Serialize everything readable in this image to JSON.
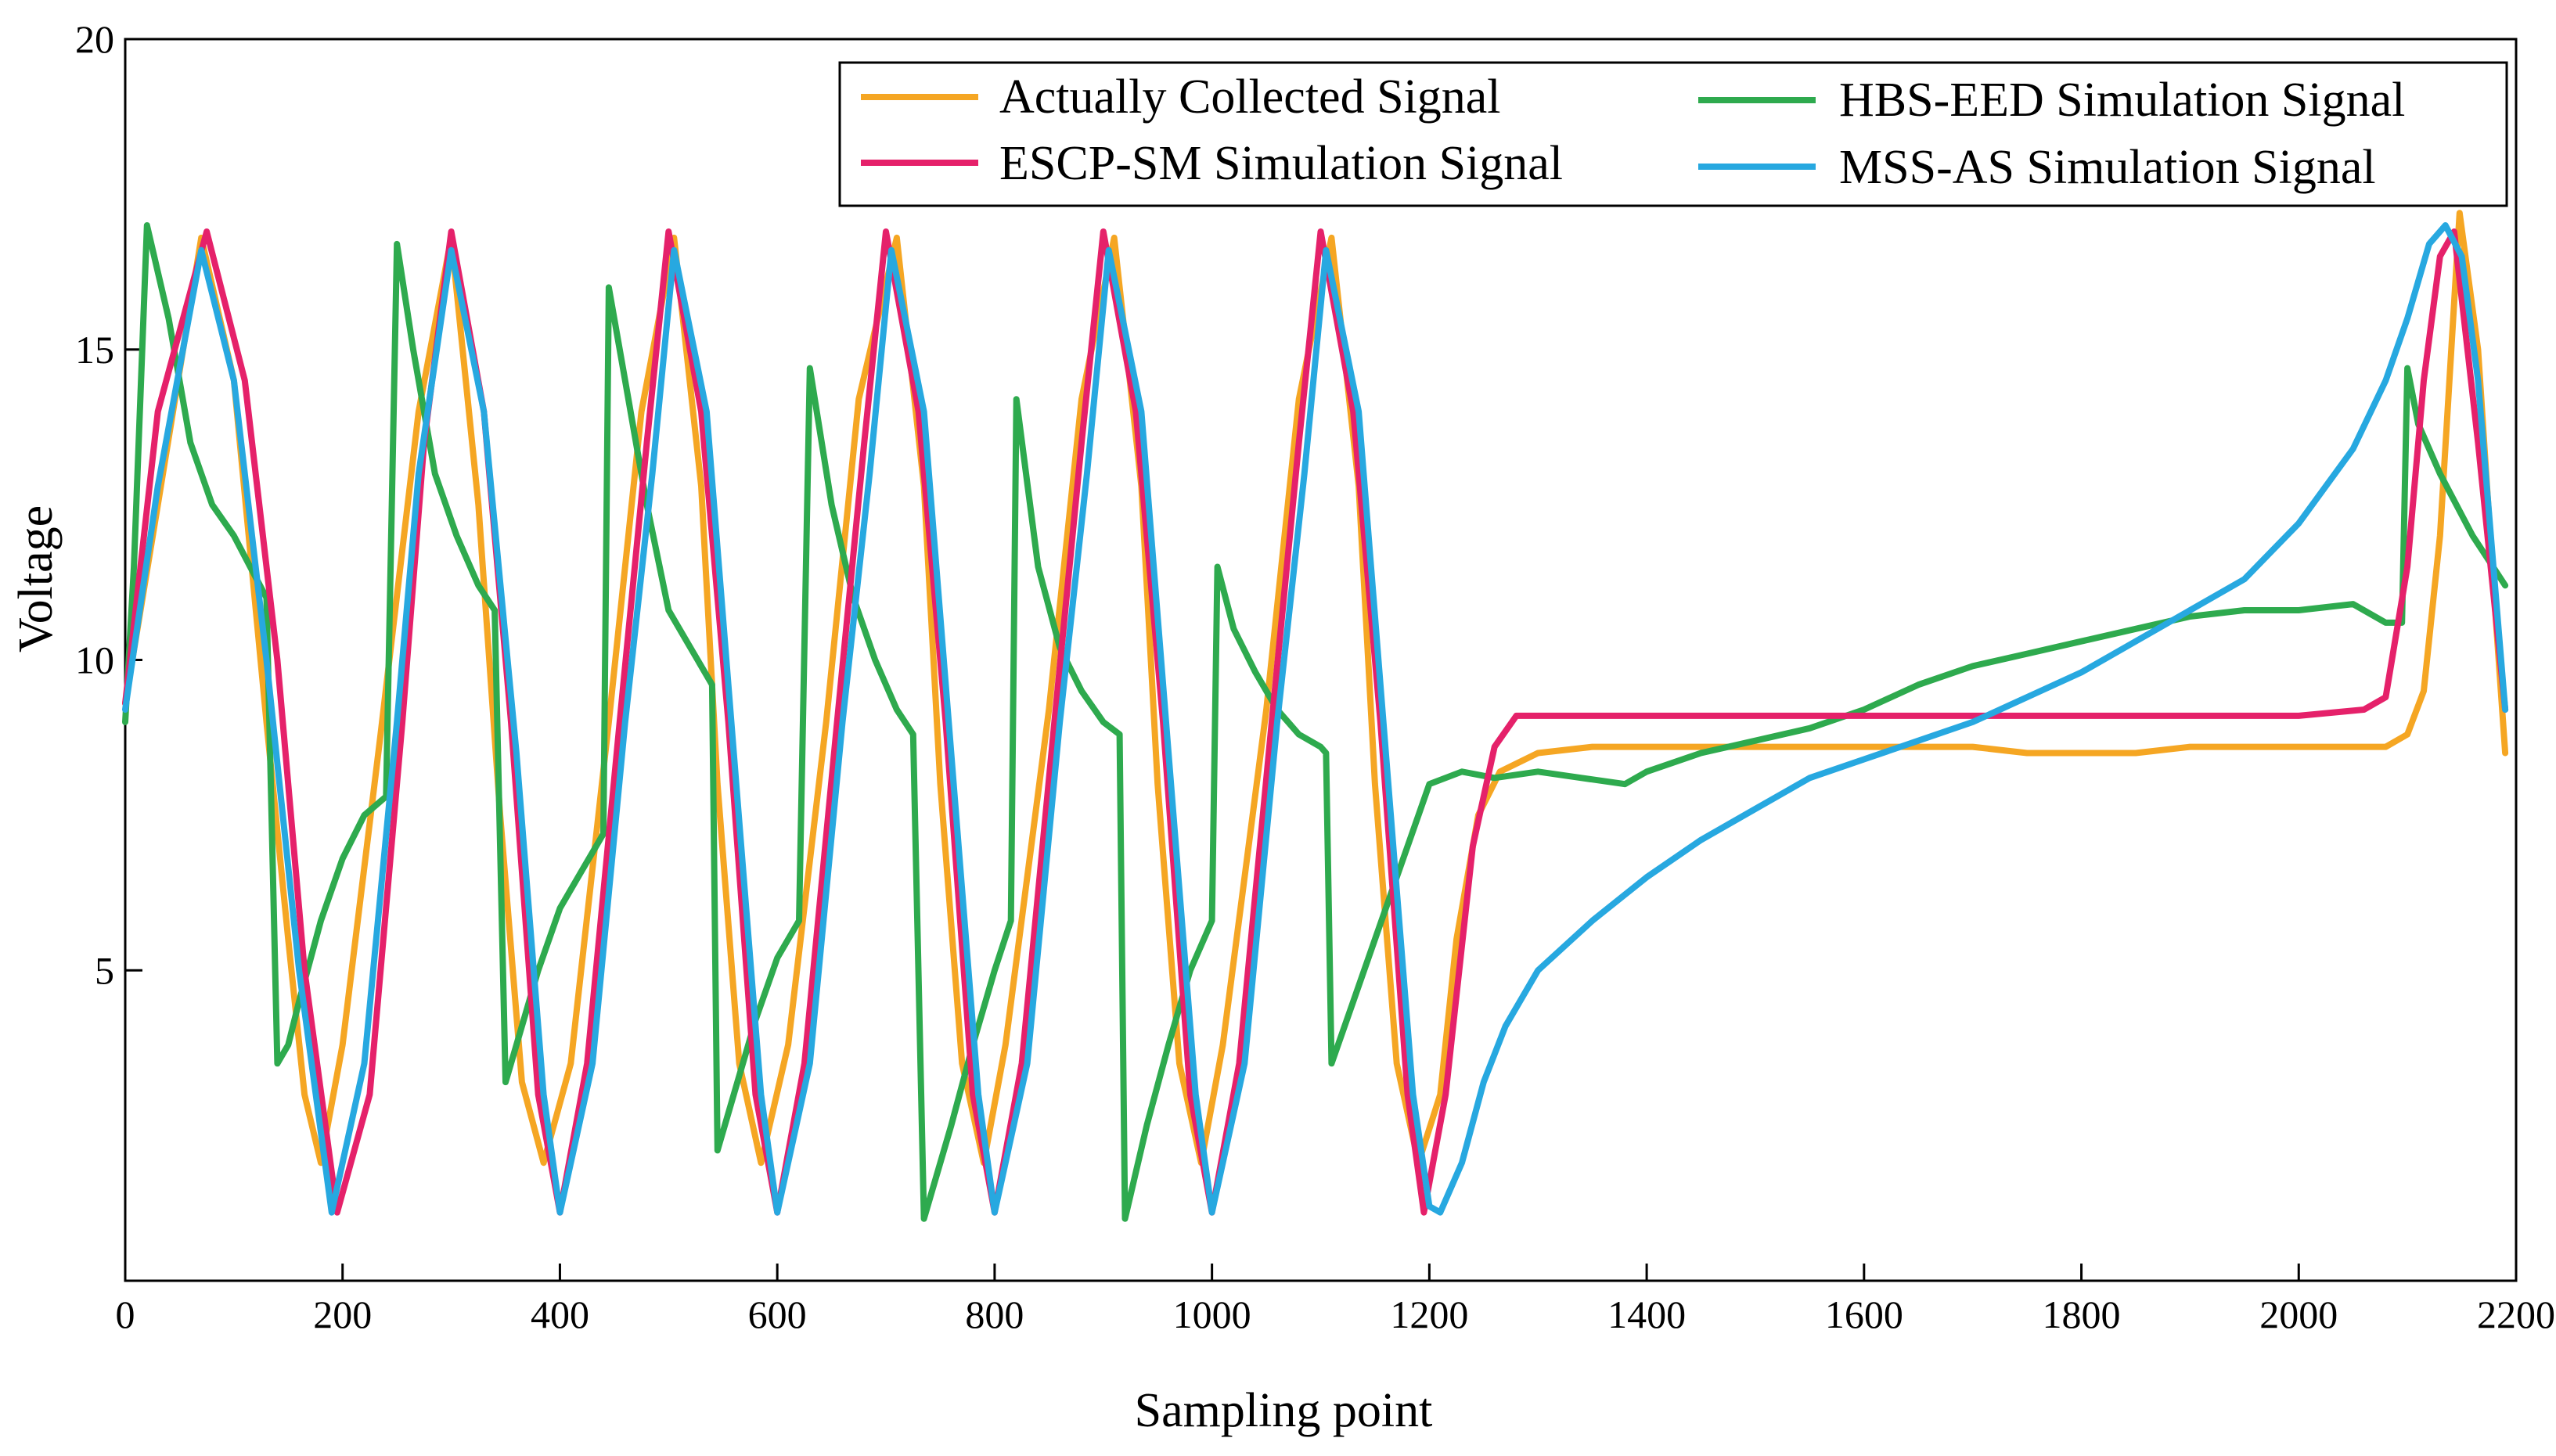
{
  "chart_data": {
    "type": "line",
    "title": "",
    "xlabel": "Sampling point",
    "ylabel": "Voltage",
    "xlim": [
      0,
      2200
    ],
    "ylim": [
      0,
      20
    ],
    "x_ticks": [
      0,
      200,
      400,
      600,
      800,
      1000,
      1200,
      1400,
      1600,
      1800,
      2000,
      2200
    ],
    "x_tick_labels": [
      "0",
      "200",
      "400",
      "600",
      "800",
      "1000",
      "1200",
      "1400",
      "1600",
      "1800",
      "2000",
      "2200"
    ],
    "y_ticks": [
      5,
      10,
      15,
      20
    ],
    "y_tick_labels": [
      "5",
      "10",
      "15",
      "20"
    ],
    "grid": false,
    "legend_position": "top-right",
    "series": [
      {
        "name": "Actually Collected Signal",
        "color": "#F5A623",
        "x": [
          0,
          30,
          70,
          100,
          130,
          150,
          165,
          180,
          200,
          235,
          270,
          300,
          325,
          345,
          365,
          385,
          410,
          445,
          475,
          505,
          530,
          545,
          565,
          585,
          610,
          645,
          675,
          710,
          735,
          750,
          770,
          790,
          810,
          850,
          880,
          910,
          935,
          950,
          970,
          990,
          1010,
          1050,
          1080,
          1110,
          1135,
          1150,
          1170,
          1190,
          1210,
          1225,
          1245,
          1265,
          1300,
          1350,
          1400,
          1450,
          1500,
          1550,
          1600,
          1650,
          1700,
          1750,
          1800,
          1850,
          1900,
          1950,
          2000,
          2050,
          2080,
          2100,
          2115,
          2130,
          2148,
          2165,
          2180,
          2190
        ],
        "values": [
          9.3,
          12.5,
          16.8,
          14.5,
          9.0,
          5.5,
          3.0,
          1.9,
          3.8,
          8.8,
          14.0,
          16.8,
          12.5,
          7.5,
          3.2,
          1.9,
          3.5,
          9.0,
          14.0,
          16.8,
          12.8,
          8.0,
          3.5,
          1.9,
          3.8,
          9.0,
          14.2,
          16.8,
          12.8,
          8.0,
          3.5,
          1.9,
          3.8,
          9.2,
          14.2,
          16.8,
          12.8,
          8.0,
          3.5,
          1.9,
          3.8,
          9.2,
          14.2,
          16.8,
          12.8,
          8.0,
          3.5,
          1.9,
          3.0,
          5.5,
          7.5,
          8.2,
          8.5,
          8.6,
          8.6,
          8.6,
          8.6,
          8.6,
          8.6,
          8.6,
          8.6,
          8.5,
          8.5,
          8.5,
          8.6,
          8.6,
          8.6,
          8.6,
          8.6,
          8.8,
          9.5,
          12.0,
          17.2,
          15.0,
          11.0,
          8.5
        ]
      },
      {
        "name": "HBS-EED Simulation Signal",
        "color": "#2EAA4E",
        "x": [
          0,
          8,
          20,
          40,
          60,
          80,
          100,
          115,
          130,
          140,
          150,
          160,
          180,
          200,
          220,
          240,
          250,
          265,
          285,
          305,
          325,
          340,
          350,
          360,
          380,
          400,
          420,
          440,
          445,
          460,
          480,
          500,
          520,
          540,
          545,
          560,
          580,
          600,
          620,
          630,
          650,
          670,
          690,
          710,
          725,
          735,
          760,
          780,
          800,
          815,
          820,
          840,
          860,
          880,
          900,
          915,
          920,
          940,
          960,
          980,
          1000,
          1005,
          1020,
          1040,
          1060,
          1080,
          1100,
          1105,
          1110,
          1130,
          1150,
          1170,
          1190,
          1200,
          1230,
          1260,
          1300,
          1340,
          1380,
          1400,
          1450,
          1500,
          1550,
          1600,
          1650,
          1700,
          1750,
          1800,
          1850,
          1900,
          1950,
          2000,
          2050,
          2080,
          2095,
          2100,
          2110,
          2130,
          2160,
          2190
        ],
        "values": [
          9.0,
          11.5,
          17.0,
          15.5,
          13.5,
          12.5,
          12.0,
          11.5,
          11.0,
          3.5,
          3.8,
          4.5,
          5.8,
          6.8,
          7.5,
          7.8,
          16.7,
          15.0,
          13.0,
          12.0,
          11.2,
          10.8,
          3.2,
          3.8,
          5.0,
          6.0,
          6.6,
          7.2,
          16.0,
          14.5,
          12.5,
          10.8,
          10.2,
          9.6,
          2.1,
          3.0,
          4.2,
          5.2,
          5.8,
          14.7,
          12.5,
          11.0,
          10.0,
          9.2,
          8.8,
          1.0,
          2.5,
          3.8,
          5.0,
          5.8,
          14.2,
          11.5,
          10.2,
          9.5,
          9.0,
          8.8,
          1.0,
          2.5,
          3.8,
          5.0,
          5.8,
          11.5,
          10.5,
          9.8,
          9.2,
          8.8,
          8.6,
          8.5,
          3.5,
          4.5,
          5.5,
          6.5,
          7.5,
          8.0,
          8.2,
          8.1,
          8.2,
          8.1,
          8.0,
          8.2,
          8.5,
          8.7,
          8.9,
          9.2,
          9.6,
          9.9,
          10.1,
          10.3,
          10.5,
          10.7,
          10.8,
          10.8,
          10.9,
          10.6,
          10.6,
          14.7,
          13.8,
          13.0,
          12.0,
          11.2
        ]
      },
      {
        "name": "ESCP-SM Simulation Signal",
        "color": "#E5216A",
        "x": [
          0,
          30,
          75,
          110,
          140,
          165,
          195,
          225,
          255,
          275,
          300,
          330,
          355,
          380,
          400,
          425,
          455,
          480,
          500,
          530,
          555,
          580,
          600,
          625,
          655,
          680,
          700,
          730,
          755,
          780,
          800,
          825,
          855,
          880,
          900,
          930,
          955,
          980,
          1000,
          1025,
          1055,
          1080,
          1100,
          1130,
          1155,
          1180,
          1195,
          1215,
          1240,
          1260,
          1280,
          1300,
          1400,
          1500,
          1600,
          1700,
          1800,
          1900,
          2000,
          2060,
          2080,
          2100,
          2115,
          2130,
          2143,
          2165,
          2190
        ],
        "values": [
          9.3,
          14.0,
          16.9,
          14.5,
          10.0,
          5.0,
          1.1,
          3.0,
          9.0,
          13.5,
          16.9,
          14.0,
          9.0,
          3.0,
          1.1,
          3.5,
          9.0,
          13.5,
          16.9,
          14.0,
          9.0,
          3.0,
          1.1,
          3.5,
          9.0,
          13.5,
          16.9,
          14.0,
          9.0,
          3.0,
          1.1,
          3.5,
          9.0,
          13.5,
          16.9,
          14.0,
          9.0,
          3.0,
          1.1,
          3.5,
          9.0,
          13.5,
          16.9,
          14.0,
          9.0,
          3.0,
          1.1,
          3.0,
          7.0,
          8.6,
          9.1,
          9.1,
          9.1,
          9.1,
          9.1,
          9.1,
          9.1,
          9.1,
          9.1,
          9.2,
          9.4,
          11.5,
          14.5,
          16.5,
          16.9,
          13.5,
          9.2
        ]
      },
      {
        "name": "MSS-AS Simulation Signal",
        "color": "#27A8E0",
        "x": [
          0,
          30,
          70,
          100,
          130,
          160,
          190,
          220,
          250,
          270,
          300,
          330,
          360,
          385,
          400,
          430,
          460,
          485,
          505,
          535,
          560,
          585,
          600,
          630,
          660,
          685,
          705,
          735,
          760,
          785,
          800,
          830,
          860,
          885,
          905,
          935,
          960,
          985,
          1000,
          1030,
          1060,
          1085,
          1105,
          1135,
          1160,
          1185,
          1200,
          1210,
          1230,
          1250,
          1270,
          1300,
          1350,
          1400,
          1450,
          1500,
          1550,
          1600,
          1650,
          1700,
          1750,
          1800,
          1850,
          1900,
          1950,
          2000,
          2050,
          2080,
          2100,
          2120,
          2135,
          2150,
          2165,
          2190
        ],
        "values": [
          9.2,
          12.8,
          16.6,
          14.5,
          10.0,
          5.0,
          1.1,
          3.5,
          9.0,
          13.0,
          16.6,
          14.0,
          8.5,
          3.0,
          1.1,
          3.5,
          9.0,
          13.0,
          16.6,
          14.0,
          8.5,
          3.0,
          1.1,
          3.5,
          9.0,
          13.0,
          16.6,
          14.0,
          8.5,
          3.0,
          1.1,
          3.5,
          9.0,
          13.0,
          16.6,
          14.0,
          8.5,
          3.0,
          1.1,
          3.5,
          9.0,
          13.0,
          16.6,
          14.0,
          8.5,
          3.0,
          1.2,
          1.1,
          1.9,
          3.2,
          4.1,
          5.0,
          5.8,
          6.5,
          7.1,
          7.6,
          8.1,
          8.4,
          8.7,
          9.0,
          9.4,
          9.8,
          10.3,
          10.8,
          11.3,
          12.2,
          13.4,
          14.5,
          15.5,
          16.7,
          17.0,
          16.5,
          14.5,
          9.2
        ]
      }
    ]
  }
}
